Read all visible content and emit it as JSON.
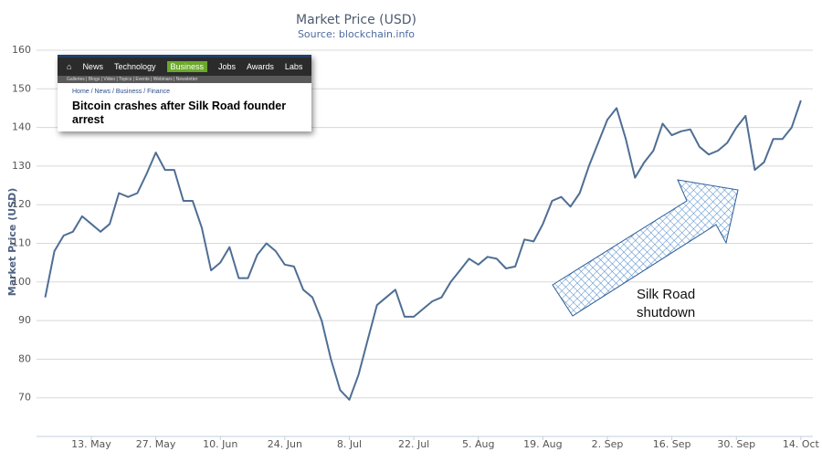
{
  "chart_data": {
    "type": "line",
    "title": "Market Price (USD)",
    "subtitle": "Source: blockchain.info",
    "y_label": "Market Price (USD)",
    "categories": [
      null,
      null,
      null,
      null,
      null,
      "13. May",
      null,
      null,
      null,
      null,
      null,
      null,
      "27. May",
      null,
      null,
      null,
      null,
      null,
      null,
      "10. Jun",
      null,
      null,
      null,
      null,
      null,
      null,
      "24. Jun",
      null,
      null,
      null,
      null,
      null,
      null,
      "8. Jul",
      null,
      null,
      null,
      null,
      null,
      null,
      "22. Jul",
      null,
      null,
      null,
      null,
      null,
      null,
      "5. Aug",
      null,
      null,
      null,
      null,
      null,
      null,
      "19. Aug",
      null,
      null,
      null,
      null,
      null,
      null,
      "2. Sep",
      null,
      null,
      null,
      null,
      null,
      null,
      "16. Sep",
      null,
      null,
      null,
      null,
      null,
      null,
      "30. Sep",
      null,
      null,
      null,
      null,
      null,
      null,
      "14. Oct"
    ],
    "values": [
      96,
      108,
      112,
      113,
      117,
      115,
      113,
      115,
      123,
      122,
      123,
      128,
      133.5,
      129,
      129,
      121,
      121,
      114,
      103,
      105,
      109,
      101,
      101,
      107,
      110,
      108,
      104.5,
      104,
      98,
      96,
      90,
      80,
      72,
      69.5,
      76,
      85,
      94,
      96,
      98,
      91,
      91,
      93,
      95,
      96,
      100,
      103,
      106,
      104.5,
      106.5,
      106,
      103.5,
      104,
      111,
      110.5,
      115,
      121,
      122,
      119.5,
      123,
      130,
      136,
      142,
      145,
      137,
      127,
      131,
      134,
      141,
      138,
      139,
      139.5,
      135,
      133,
      134,
      136,
      140,
      143,
      129,
      131,
      137,
      137,
      140,
      147
    ],
    "color": "#4f6e94",
    "ylim": [
      60,
      160
    ],
    "yticks": [
      70,
      80,
      90,
      100,
      110,
      120,
      130,
      140,
      150,
      160
    ],
    "grid": true,
    "annotation": {
      "text_lines": [
        "Silk Road",
        "shutdown"
      ]
    },
    "inset": {
      "nav": [
        "News",
        "Technology",
        "Business",
        "Jobs",
        "Awards",
        "Labs"
      ],
      "subnav": "Galleries | Blogs | Video | Topics | Events | Webinars | Newsletter",
      "breadcrumb": "Home / News / Business / Finance",
      "headline": "Bitcoin crashes after Silk Road founder arrest"
    }
  }
}
